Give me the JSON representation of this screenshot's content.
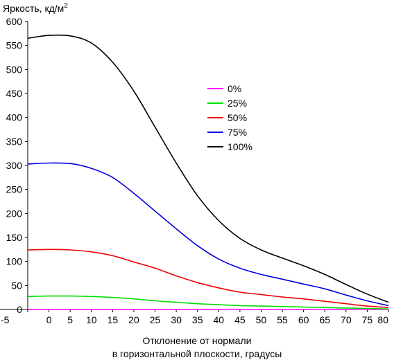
{
  "chart_data": {
    "type": "line",
    "ylabel": "Яркость, кд/м",
    "ylabel_sup": "2",
    "xlabel_lines": [
      "Отклонение от нормали",
      "в горизонтальной плоскости, градусы"
    ],
    "xlim": [
      -5,
      80
    ],
    "ylim": [
      0,
      600
    ],
    "xticks": [
      "-5",
      "0",
      "5",
      "10",
      "15",
      "20",
      "25",
      "30",
      "35",
      "40",
      "45",
      "50",
      "55",
      "60",
      "65",
      "70",
      "75",
      "80"
    ],
    "yticks": [
      "0",
      "50",
      "100",
      "150",
      "200",
      "250",
      "300",
      "350",
      "400",
      "450",
      "500",
      "550",
      "600"
    ],
    "grid": false,
    "legend_position": "upper-center-right",
    "series": [
      {
        "name": "0%",
        "color": "#ff00ff",
        "x": [
          -5,
          0,
          5,
          10,
          15,
          20,
          25,
          30,
          35,
          40,
          45,
          50,
          55,
          60,
          65,
          70,
          75,
          80
        ],
        "y": [
          0,
          0,
          0,
          0,
          0,
          0,
          0,
          0,
          0,
          0,
          0,
          0,
          0,
          0,
          0,
          0,
          0,
          0
        ]
      },
      {
        "name": "25%",
        "color": "#00dd00",
        "x": [
          -5,
          0,
          5,
          10,
          15,
          20,
          25,
          30,
          35,
          40,
          45,
          50,
          55,
          60,
          65,
          70,
          75,
          80
        ],
        "y": [
          27,
          28,
          28,
          27,
          25,
          22,
          18,
          15,
          12,
          10,
          8,
          7,
          6,
          5,
          4,
          3,
          2,
          1
        ]
      },
      {
        "name": "50%",
        "color": "#ee0000",
        "x": [
          -5,
          0,
          5,
          10,
          15,
          20,
          25,
          30,
          35,
          40,
          45,
          50,
          55,
          60,
          65,
          70,
          75,
          80
        ],
        "y": [
          124,
          125,
          124,
          120,
          112,
          99,
          86,
          70,
          56,
          45,
          36,
          31,
          26,
          22,
          17,
          12,
          7,
          4
        ]
      },
      {
        "name": "75%",
        "color": "#0000dd",
        "x": [
          -5,
          0,
          5,
          10,
          15,
          20,
          25,
          30,
          35,
          40,
          45,
          50,
          55,
          60,
          65,
          70,
          75,
          80
        ],
        "y": [
          303,
          305,
          304,
          294,
          275,
          242,
          205,
          168,
          133,
          105,
          86,
          73,
          63,
          53,
          43,
          30,
          18,
          8
        ]
      },
      {
        "name": "100%",
        "color": "#000000",
        "x": [
          -5,
          0,
          5,
          10,
          15,
          20,
          25,
          30,
          35,
          40,
          45,
          50,
          55,
          60,
          65,
          70,
          75,
          80
        ],
        "y": [
          565,
          571,
          570,
          555,
          515,
          455,
          380,
          305,
          237,
          185,
          148,
          124,
          107,
          91,
          73,
          52,
          32,
          15
        ]
      }
    ]
  }
}
